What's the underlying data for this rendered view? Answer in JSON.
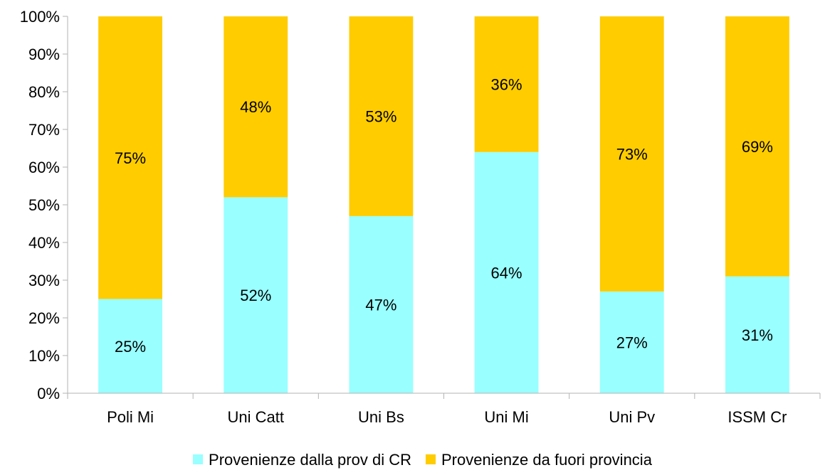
{
  "chart_data": {
    "type": "bar",
    "stacked": true,
    "percent_stacked": true,
    "categories": [
      "Poli Mi",
      "Uni Catt",
      "Uni Bs",
      "Uni Mi",
      "Uni Pv",
      "ISSM Cr"
    ],
    "series": [
      {
        "name": "Provenienze dalla prov di CR",
        "values": [
          25,
          52,
          47,
          64,
          27,
          31
        ],
        "labels": [
          "25%",
          "52%",
          "47%",
          "64%",
          "27%",
          "31%"
        ],
        "color": "#99ffff"
      },
      {
        "name": "Provenienze da fuori provincia",
        "values": [
          75,
          48,
          53,
          36,
          73,
          69
        ],
        "labels": [
          "75%",
          "48%",
          "53%",
          "36%",
          "73%",
          "69%"
        ],
        "color": "#ffcc00"
      }
    ],
    "ylim": [
      0,
      100
    ],
    "yticks": [
      "0%",
      "10%",
      "20%",
      "30%",
      "40%",
      "50%",
      "60%",
      "70%",
      "80%",
      "90%",
      "100%"
    ],
    "xlabel": "",
    "ylabel": "",
    "grid": false,
    "legend_position": "bottom"
  }
}
